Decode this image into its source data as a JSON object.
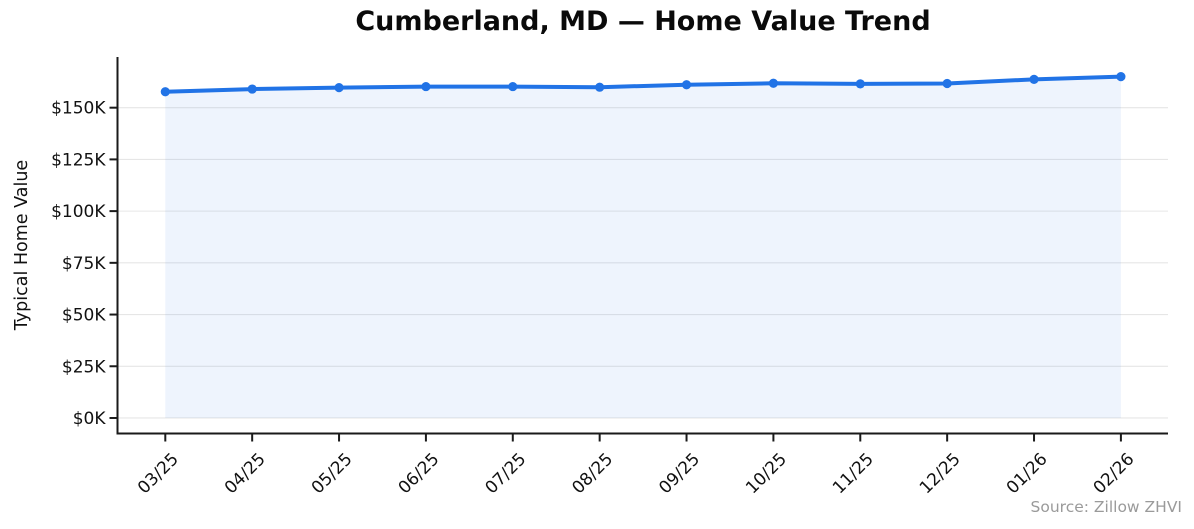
{
  "chart_data": {
    "type": "line",
    "title": "Cumberland, MD — Home Value Trend",
    "ylabel": "Typical Home Value",
    "xlabel": "",
    "source": "Source: Zillow ZHVI",
    "categories": [
      "03/25",
      "04/25",
      "05/25",
      "06/25",
      "07/25",
      "08/25",
      "09/25",
      "10/25",
      "11/25",
      "12/25",
      "01/26",
      "02/26"
    ],
    "series": [
      {
        "name": "Typical Home Value",
        "values": [
          157700,
          159000,
          159700,
          160200,
          160200,
          159900,
          161100,
          161800,
          161500,
          161700,
          163700,
          165000
        ]
      }
    ],
    "yticks": {
      "values": [
        0,
        25000,
        50000,
        75000,
        100000,
        125000,
        150000
      ],
      "labels": [
        "$0K",
        "$25K",
        "$50K",
        "$75K",
        "$100K",
        "$125K",
        "$150K"
      ]
    },
    "ylim": [
      -7500,
      174500
    ],
    "grid": "horizontal",
    "legend_position": "none",
    "marker": "circle",
    "area_fill": true,
    "colors": {
      "line": "#2173e6",
      "fill": "#2173e6",
      "fill_opacity": 0.08,
      "grid": "#e6e6e6",
      "axis": "#1a1a1a",
      "tick_text": "#111111",
      "title_text": "#0a0a0a",
      "source_text": "#9a9a9a",
      "background": "#ffffff"
    }
  }
}
